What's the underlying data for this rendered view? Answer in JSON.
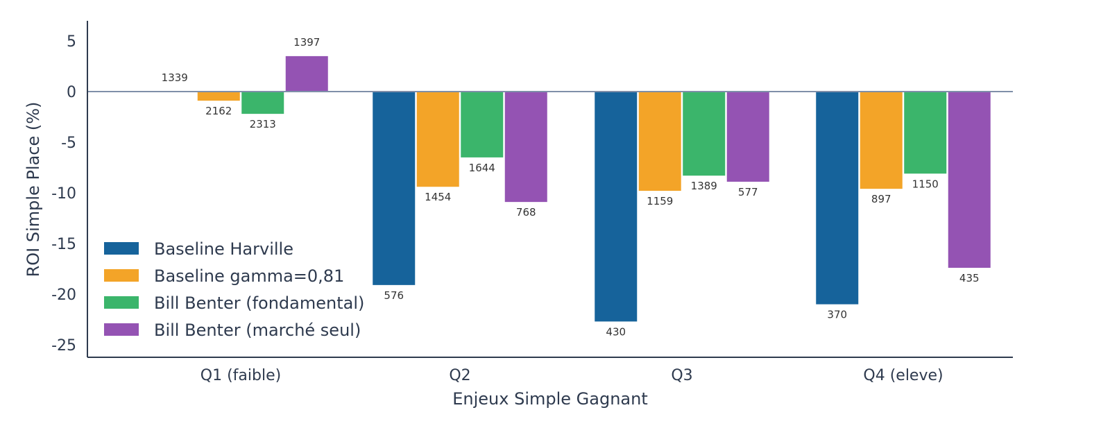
{
  "chart_data": {
    "type": "bar",
    "title": "",
    "xlabel": "Enjeux Simple Gagnant",
    "ylabel": "ROI Simple Place (%)",
    "ylim": [
      -26,
      7
    ],
    "yticks": [
      "5",
      "0",
      "-5",
      "-10",
      "-15",
      "-20",
      "-25"
    ],
    "ytick_values": [
      5,
      0,
      -5,
      -10,
      -15,
      -20,
      -25
    ],
    "categories": [
      "Q1 (faible)",
      "Q2",
      "Q3",
      "Q4 (eleve)"
    ],
    "grid": false,
    "legend_position": "lower-left",
    "series": [
      {
        "name": "Baseline Harville",
        "color": "#16639b",
        "values": [
          0,
          -19.1,
          -22.7,
          -21.0
        ],
        "labels": [
          "1339",
          "576",
          "430",
          "370"
        ]
      },
      {
        "name": "Baseline gamma=0,81",
        "color": "#f3a428",
        "values": [
          -0.9,
          -9.4,
          -9.8,
          -9.6
        ],
        "labels": [
          "2162",
          "1454",
          "1159",
          "897"
        ]
      },
      {
        "name": "Bill Benter (fondamental)",
        "color": "#3bb56b",
        "values": [
          -2.2,
          -6.5,
          -8.3,
          -8.1
        ],
        "labels": [
          "2313",
          "1644",
          "1389",
          "1150"
        ]
      },
      {
        "name": "Bill Benter (marché seul)",
        "color": "#9453b3",
        "values": [
          3.5,
          -10.9,
          -8.9,
          -17.4
        ],
        "labels": [
          "1397",
          "768",
          "577",
          "435"
        ]
      }
    ]
  }
}
